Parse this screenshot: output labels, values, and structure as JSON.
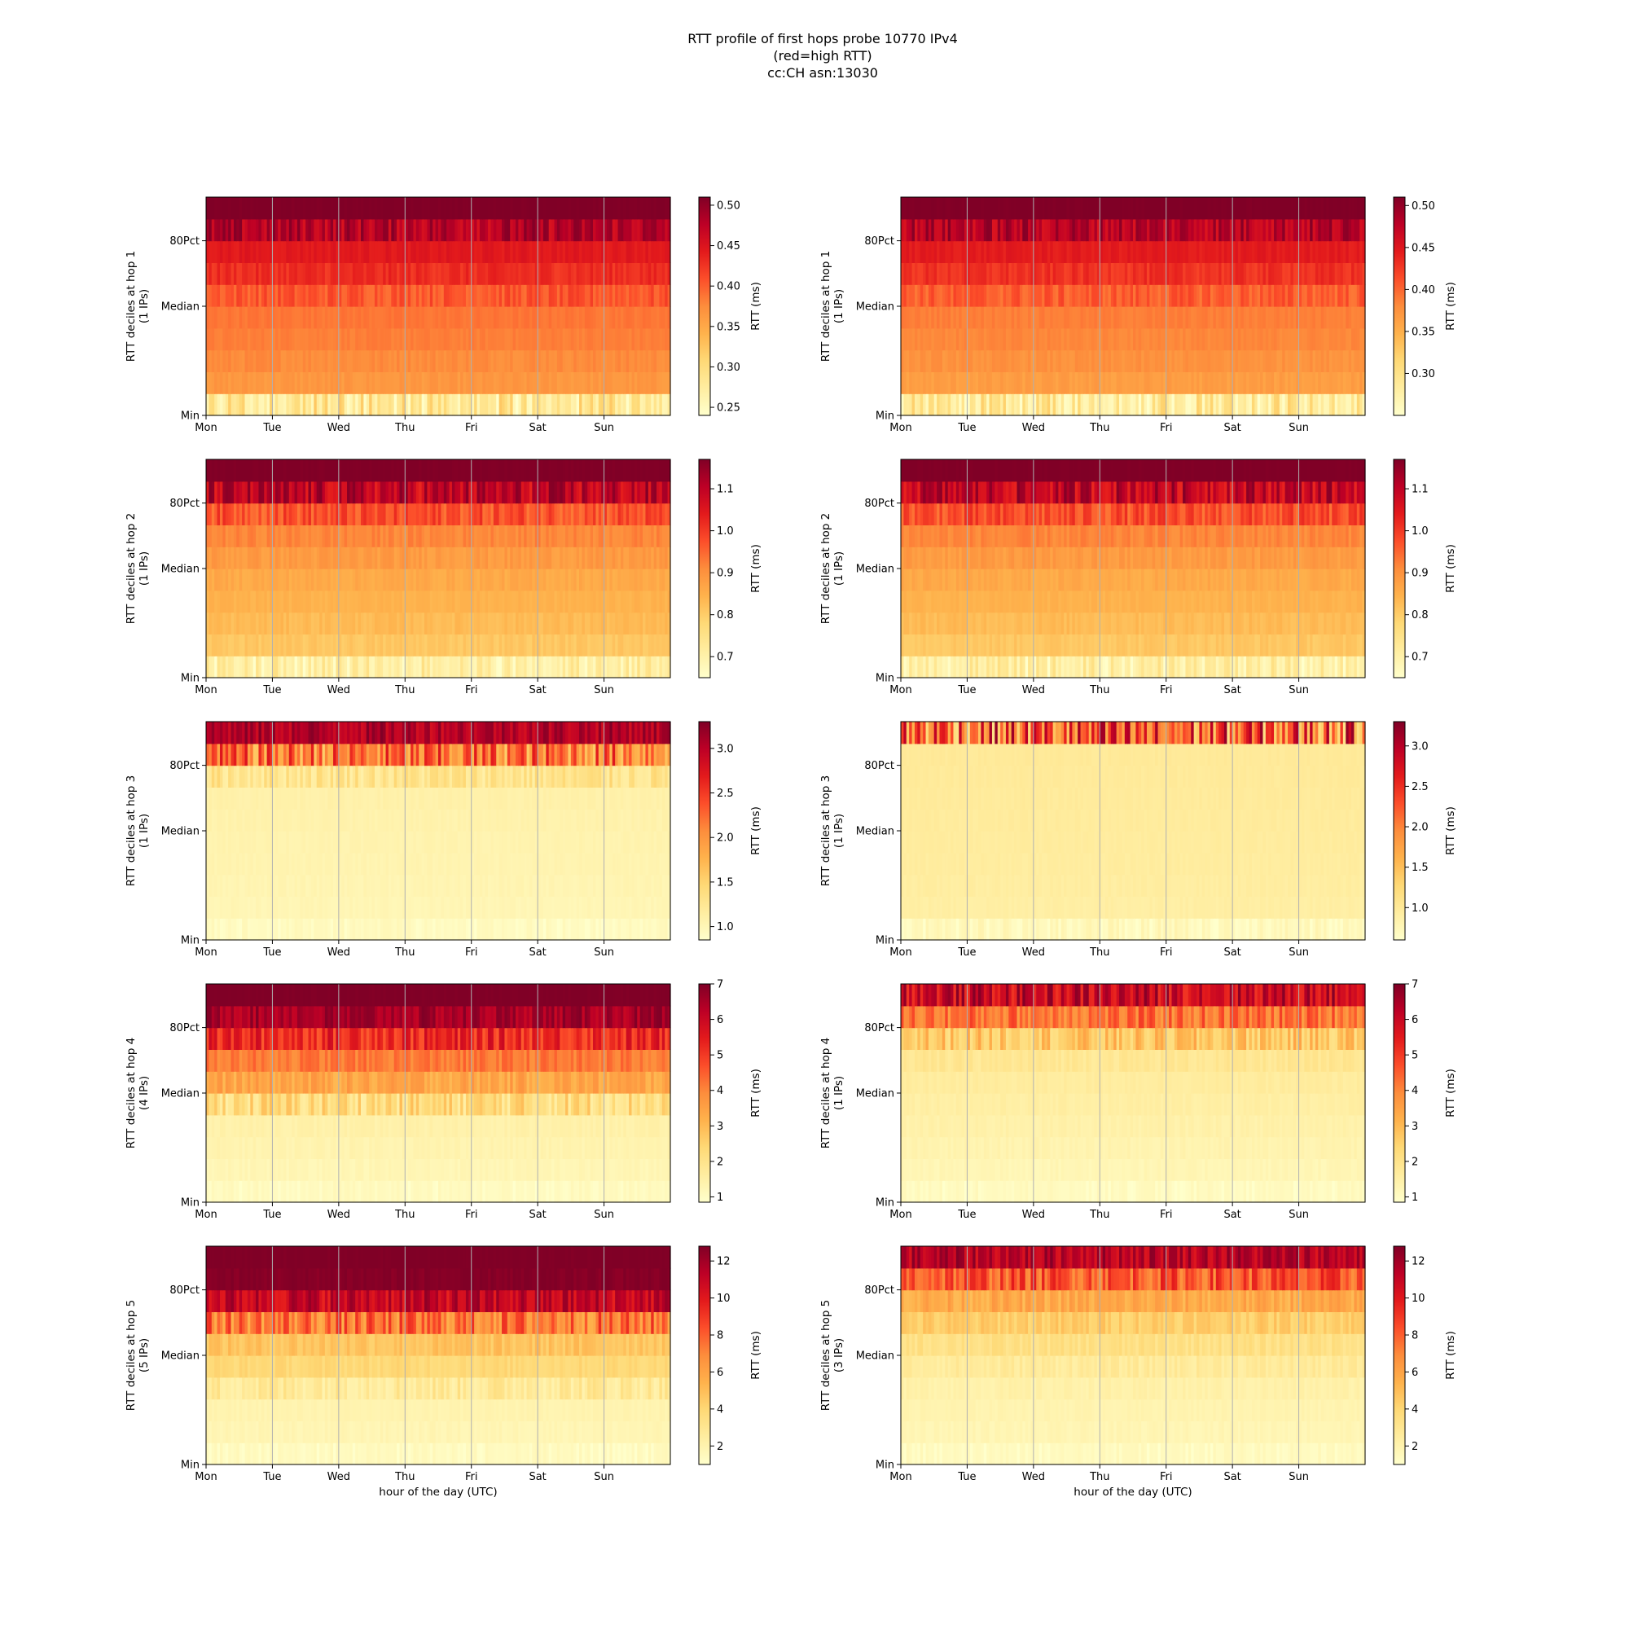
{
  "figure": {
    "title_lines": [
      "RTT profile of first hops probe 10770 IPv4",
      "(red=high RTT)",
      "cc:CH asn:13030"
    ]
  },
  "chart_data": {
    "type": "heatmap",
    "x_tick_labels": [
      "Mon",
      "Tue",
      "Wed",
      "Thu",
      "Fri",
      "Sat",
      "Sun"
    ],
    "y_tick_labels": [
      "Min",
      "Median",
      "80Pct"
    ],
    "xlabel_bottom": "hour of the day (UTC)",
    "colorbar_label": "RTT (ms)",
    "colormap": [
      "#ffffcc",
      "#ffeda0",
      "#fed976",
      "#feb24c",
      "#fd8d3c",
      "#fc4e2a",
      "#e31a1c",
      "#bd0026",
      "#800026"
    ],
    "panels": [
      {
        "hop": 1,
        "column": "left",
        "ylabel": [
          "RTT deciles at hop 1",
          "(1 IPs)"
        ],
        "cbar_ticks": [
          "0.25",
          "0.30",
          "0.35",
          "0.40",
          "0.45",
          "0.50"
        ],
        "vmin": 0.24,
        "vmax": 0.51,
        "decile_rtt_ms": [
          0.29,
          0.36,
          0.37,
          0.38,
          0.385,
          0.39,
          0.42,
          0.44,
          0.45,
          0.51,
          0.51
        ]
      },
      {
        "hop": 1,
        "column": "right",
        "ylabel": [
          "RTT deciles at hop 1",
          "(1 IPs)"
        ],
        "cbar_ticks": [
          "0.30",
          "0.35",
          "0.40",
          "0.45",
          "0.50"
        ],
        "vmin": 0.25,
        "vmax": 0.51,
        "decile_rtt_ms": [
          0.29,
          0.36,
          0.37,
          0.38,
          0.385,
          0.39,
          0.42,
          0.44,
          0.45,
          0.51,
          0.51
        ]
      },
      {
        "hop": 2,
        "column": "left",
        "ylabel": [
          "RTT deciles at hop 2",
          "(1 IPs)"
        ],
        "cbar_ticks": [
          "0.7",
          "0.8",
          "0.9",
          "1.0",
          "1.1"
        ],
        "vmin": 0.65,
        "vmax": 1.17,
        "decile_rtt_ms": [
          0.72,
          0.8,
          0.82,
          0.84,
          0.85,
          0.87,
          0.9,
          0.93,
          1.02,
          1.17,
          1.17
        ]
      },
      {
        "hop": 2,
        "column": "right",
        "ylabel": [
          "RTT deciles at hop 2",
          "(1 IPs)"
        ],
        "cbar_ticks": [
          "0.7",
          "0.8",
          "0.9",
          "1.0",
          "1.1"
        ],
        "vmin": 0.65,
        "vmax": 1.17,
        "decile_rtt_ms": [
          0.72,
          0.8,
          0.82,
          0.84,
          0.85,
          0.87,
          0.9,
          0.93,
          1.02,
          1.17,
          1.17
        ]
      },
      {
        "hop": 3,
        "column": "left",
        "ylabel": [
          "RTT deciles at hop 3",
          "(1 IPs)"
        ],
        "cbar_ticks": [
          "1.0",
          "1.5",
          "2.0",
          "2.5",
          "3.0"
        ],
        "vmin": 0.85,
        "vmax": 3.3,
        "decile_rtt_ms": [
          0.95,
          1.0,
          1.02,
          1.04,
          1.05,
          1.06,
          1.08,
          1.1,
          1.5,
          2.8,
          3.3
        ]
      },
      {
        "hop": 3,
        "column": "right",
        "ylabel": [
          "RTT deciles at hop 3",
          "(1 IPs)"
        ],
        "cbar_ticks": [
          "1.0",
          "1.5",
          "2.0",
          "2.5",
          "3.0"
        ],
        "vmin": 0.6,
        "vmax": 3.3,
        "decile_rtt_ms": [
          0.75,
          0.9,
          0.92,
          0.94,
          0.95,
          0.96,
          0.97,
          0.98,
          0.99,
          1.0,
          3.3
        ]
      },
      {
        "hop": 4,
        "column": "left",
        "ylabel": [
          "RTT deciles at hop 4",
          "(4 IPs)"
        ],
        "cbar_ticks": [
          "1",
          "2",
          "3",
          "4",
          "5",
          "6",
          "7"
        ],
        "vmin": 0.85,
        "vmax": 7.0,
        "decile_rtt_ms": [
          1.1,
          1.2,
          1.3,
          1.4,
          1.5,
          3.0,
          3.8,
          4.5,
          6.0,
          7.0,
          7.0
        ]
      },
      {
        "hop": 4,
        "column": "right",
        "ylabel": [
          "RTT deciles at hop 4",
          "(1 IPs)"
        ],
        "cbar_ticks": [
          "1",
          "2",
          "3",
          "4",
          "5",
          "6",
          "7"
        ],
        "vmin": 0.85,
        "vmax": 7.0,
        "decile_rtt_ms": [
          1.1,
          1.2,
          1.3,
          1.4,
          1.5,
          1.6,
          1.7,
          2.0,
          3.5,
          5.0,
          7.0
        ]
      },
      {
        "hop": 5,
        "column": "left",
        "ylabel": [
          "RTT deciles at hop 5",
          "(5 IPs)"
        ],
        "cbar_ticks": [
          "2",
          "4",
          "6",
          "8",
          "10",
          "12"
        ],
        "vmin": 1.0,
        "vmax": 12.8,
        "decile_rtt_ms": [
          1.5,
          1.7,
          1.9,
          2.0,
          3.6,
          4.2,
          5.3,
          9.5,
          12.5,
          12.8,
          12.8
        ]
      },
      {
        "hop": 5,
        "column": "right",
        "ylabel": [
          "RTT deciles at hop 5",
          "(3 IPs)"
        ],
        "cbar_ticks": [
          "2",
          "4",
          "6",
          "8",
          "10",
          "12"
        ],
        "vmin": 1.0,
        "vmax": 12.8,
        "decile_rtt_ms": [
          1.5,
          1.7,
          1.9,
          2.0,
          2.3,
          3.0,
          3.8,
          5.0,
          6.5,
          10.0,
          12.8
        ]
      }
    ]
  }
}
